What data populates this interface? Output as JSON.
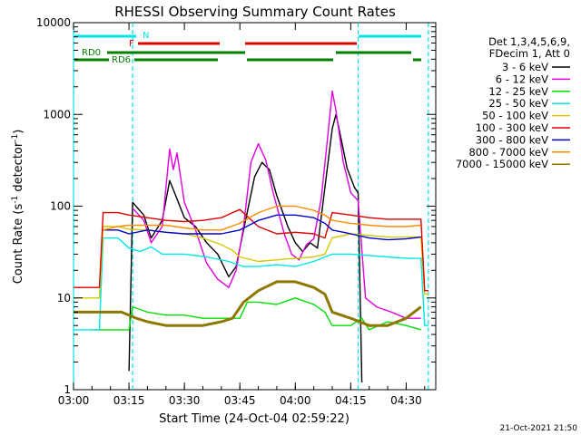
{
  "chart_data": {
    "type": "line",
    "title": "RHESSI Observing Summary Count Rates",
    "xlabel": "Start Time (24-Oct-04 02:59:22)",
    "ylabel_main": "Count Rate (s",
    "ylabel_sup": "-1",
    "ylabel_mid": " detector",
    "ylabel_end": ")",
    "y_scale": "log",
    "ylim": [
      1,
      10000
    ],
    "xlim": [
      "03:00",
      "04:38"
    ],
    "x_ticks": [
      "03:00",
      "03:15",
      "03:30",
      "03:45",
      "04:00",
      "04:15",
      "04:30"
    ],
    "y_ticks": [
      "1",
      "10",
      "100",
      "1000",
      "10000"
    ],
    "legend_header": [
      "Det 1,3,4,5,6,9,",
      "FDecim 1, Att 0"
    ],
    "legend_placement": "right",
    "footer_date": "21-Oct-2021 21:50",
    "flags": {
      "N_label": "N",
      "F_label": "F",
      "RD0_label": "RD0",
      "RD6_label": "RD6",
      "N_color": "#00e5e5",
      "F_color": "#dd0000",
      "RD_color": "#007f00"
    },
    "night_boundaries": [
      "03:00",
      "03:16",
      "04:17",
      "04:36"
    ],
    "series": [
      {
        "name": "3 - 6 keV",
        "color": "#000000",
        "points": [
          [
            "03:10",
            null
          ],
          [
            "03:15",
            1.6
          ],
          [
            "03:16",
            110
          ],
          [
            "03:19",
            80
          ],
          [
            "03:21",
            45
          ],
          [
            "03:24",
            70
          ],
          [
            "03:26",
            190
          ],
          [
            "03:28",
            120
          ],
          [
            "03:30",
            75
          ],
          [
            "03:33",
            60
          ],
          [
            "03:36",
            40
          ],
          [
            "03:39",
            30
          ],
          [
            "03:42",
            17
          ],
          [
            "03:44",
            22
          ],
          [
            "03:46",
            55
          ],
          [
            "03:49",
            210
          ],
          [
            "03:51",
            300
          ],
          [
            "03:53",
            250
          ],
          [
            "03:55",
            130
          ],
          [
            "03:58",
            60
          ],
          [
            "04:00",
            40
          ],
          [
            "04:02",
            32
          ],
          [
            "04:04",
            40
          ],
          [
            "04:06",
            35
          ],
          [
            "04:08",
            160
          ],
          [
            "04:10",
            700
          ],
          [
            "04:11",
            1000
          ],
          [
            "04:12",
            650
          ],
          [
            "04:14",
            260
          ],
          [
            "04:16",
            160
          ],
          [
            "04:17",
            140
          ],
          [
            "04:18",
            1.2
          ]
        ]
      },
      {
        "name": "6 - 12 keV",
        "color": "#e000e0",
        "points": [
          [
            "03:15",
            null
          ],
          [
            "03:16",
            95
          ],
          [
            "03:19",
            70
          ],
          [
            "03:21",
            40
          ],
          [
            "03:24",
            60
          ],
          [
            "03:26",
            420
          ],
          [
            "03:27",
            250
          ],
          [
            "03:28",
            380
          ],
          [
            "03:30",
            110
          ],
          [
            "03:33",
            55
          ],
          [
            "03:36",
            24
          ],
          [
            "03:39",
            16
          ],
          [
            "03:42",
            13
          ],
          [
            "03:44",
            20
          ],
          [
            "03:46",
            60
          ],
          [
            "03:48",
            300
          ],
          [
            "03:50",
            480
          ],
          [
            "03:52",
            320
          ],
          [
            "03:54",
            140
          ],
          [
            "03:57",
            50
          ],
          [
            "03:59",
            30
          ],
          [
            "04:01",
            26
          ],
          [
            "04:03",
            38
          ],
          [
            "04:05",
            44
          ],
          [
            "04:07",
            120
          ],
          [
            "04:09",
            700
          ],
          [
            "04:10",
            1800
          ],
          [
            "04:11",
            1100
          ],
          [
            "04:13",
            300
          ],
          [
            "04:15",
            140
          ],
          [
            "04:17",
            115
          ],
          [
            "04:19",
            10
          ],
          [
            "04:22",
            8
          ],
          [
            "04:26",
            7
          ],
          [
            "04:30",
            6
          ],
          [
            "04:34",
            6
          ]
        ]
      },
      {
        "name": "12 - 25 keV",
        "color": "#00e000",
        "points": [
          [
            "03:00",
            null
          ],
          [
            "03:05",
            4.5
          ],
          [
            "03:15",
            4.5
          ],
          [
            "03:16",
            8
          ],
          [
            "03:20",
            7
          ],
          [
            "03:25",
            6.5
          ],
          [
            "03:30",
            6.5
          ],
          [
            "03:35",
            6
          ],
          [
            "03:40",
            6
          ],
          [
            "03:45",
            6
          ],
          [
            "03:47",
            9
          ],
          [
            "03:50",
            9
          ],
          [
            "03:55",
            8.5
          ],
          [
            "04:00",
            10
          ],
          [
            "04:05",
            8.5
          ],
          [
            "04:08",
            7
          ],
          [
            "04:10",
            5
          ],
          [
            "04:15",
            5
          ],
          [
            "04:18",
            6
          ],
          [
            "04:20",
            4.5
          ],
          [
            "04:25",
            5.5
          ],
          [
            "04:30",
            5
          ],
          [
            "04:34",
            4.5
          ]
        ]
      },
      {
        "name": "25 - 50 keV",
        "color": "#00e5e5",
        "points": [
          [
            "03:00",
            4.5
          ],
          [
            "03:07",
            4.5
          ],
          [
            "03:08",
            45
          ],
          [
            "03:12",
            45
          ],
          [
            "03:15",
            35
          ],
          [
            "03:18",
            32
          ],
          [
            "03:21",
            36
          ],
          [
            "03:24",
            30
          ],
          [
            "03:30",
            30
          ],
          [
            "03:36",
            28
          ],
          [
            "03:42",
            25
          ],
          [
            "03:46",
            22
          ],
          [
            "03:50",
            22
          ],
          [
            "03:55",
            23
          ],
          [
            "04:00",
            22
          ],
          [
            "04:05",
            25
          ],
          [
            "04:10",
            30
          ],
          [
            "04:15",
            30
          ],
          [
            "04:20",
            29
          ],
          [
            "04:25",
            28
          ],
          [
            "04:30",
            27
          ],
          [
            "04:34",
            27
          ],
          [
            "04:35",
            5
          ],
          [
            "04:36",
            5
          ]
        ]
      },
      {
        "name": "50 - 100 keV",
        "color": "#d4c800",
        "points": [
          [
            "03:00",
            10
          ],
          [
            "03:07",
            10
          ],
          [
            "03:08",
            60
          ],
          [
            "03:12",
            60
          ],
          [
            "03:15",
            56
          ],
          [
            "03:20",
            55
          ],
          [
            "03:25",
            52
          ],
          [
            "03:30",
            50
          ],
          [
            "03:35",
            45
          ],
          [
            "03:40",
            38
          ],
          [
            "03:43",
            33
          ],
          [
            "03:45",
            28
          ],
          [
            "03:50",
            25
          ],
          [
            "03:55",
            26
          ],
          [
            "04:00",
            27
          ],
          [
            "04:05",
            28
          ],
          [
            "04:08",
            30
          ],
          [
            "04:10",
            45
          ],
          [
            "04:15",
            50
          ],
          [
            "04:20",
            48
          ],
          [
            "04:25",
            46
          ],
          [
            "04:30",
            46
          ],
          [
            "04:34",
            46
          ],
          [
            "04:35",
            11
          ],
          [
            "04:36",
            11
          ]
        ]
      },
      {
        "name": "100 - 300 keV",
        "color": "#dd0000",
        "points": [
          [
            "03:00",
            13
          ],
          [
            "03:07",
            13
          ],
          [
            "03:08",
            85
          ],
          [
            "03:12",
            85
          ],
          [
            "03:15",
            80
          ],
          [
            "03:20",
            75
          ],
          [
            "03:25",
            70
          ],
          [
            "03:30",
            68
          ],
          [
            "03:35",
            70
          ],
          [
            "03:40",
            75
          ],
          [
            "03:43",
            85
          ],
          [
            "03:45",
            92
          ],
          [
            "03:50",
            60
          ],
          [
            "03:55",
            50
          ],
          [
            "04:00",
            52
          ],
          [
            "04:05",
            50
          ],
          [
            "04:08",
            45
          ],
          [
            "04:10",
            85
          ],
          [
            "04:15",
            80
          ],
          [
            "04:20",
            75
          ],
          [
            "04:25",
            72
          ],
          [
            "04:30",
            72
          ],
          [
            "04:34",
            72
          ],
          [
            "04:35",
            12
          ],
          [
            "04:36",
            12
          ]
        ]
      },
      {
        "name": "300 - 800 keV",
        "color": "#0000cc",
        "points": [
          [
            "03:00",
            null
          ],
          [
            "03:07",
            null
          ],
          [
            "03:08",
            55
          ],
          [
            "03:12",
            55
          ],
          [
            "03:15",
            50
          ],
          [
            "03:20",
            55
          ],
          [
            "03:25",
            52
          ],
          [
            "03:30",
            50
          ],
          [
            "03:35",
            50
          ],
          [
            "03:40",
            50
          ],
          [
            "03:45",
            55
          ],
          [
            "03:50",
            70
          ],
          [
            "03:55",
            80
          ],
          [
            "04:00",
            80
          ],
          [
            "04:05",
            75
          ],
          [
            "04:08",
            65
          ],
          [
            "04:10",
            55
          ],
          [
            "04:15",
            50
          ],
          [
            "04:20",
            45
          ],
          [
            "04:25",
            43
          ],
          [
            "04:30",
            44
          ],
          [
            "04:34",
            46
          ]
        ]
      },
      {
        "name": "800 - 7000 keV",
        "color": "#ff8c00",
        "points": [
          [
            "03:00",
            null
          ],
          [
            "03:07",
            null
          ],
          [
            "03:08",
            55
          ],
          [
            "03:12",
            60
          ],
          [
            "03:15",
            62
          ],
          [
            "03:20",
            62
          ],
          [
            "03:25",
            62
          ],
          [
            "03:30",
            58
          ],
          [
            "03:35",
            55
          ],
          [
            "03:40",
            55
          ],
          [
            "03:45",
            65
          ],
          [
            "03:50",
            85
          ],
          [
            "03:55",
            100
          ],
          [
            "04:00",
            100
          ],
          [
            "04:05",
            90
          ],
          [
            "04:08",
            80
          ],
          [
            "04:10",
            70
          ],
          [
            "04:15",
            65
          ],
          [
            "04:20",
            62
          ],
          [
            "04:25",
            60
          ],
          [
            "04:30",
            60
          ],
          [
            "04:34",
            62
          ]
        ]
      },
      {
        "name": "7000 - 15000 keV",
        "color": "#8c7800",
        "points": [
          [
            "03:00",
            7
          ],
          [
            "03:05",
            7
          ],
          [
            "03:10",
            7
          ],
          [
            "03:13",
            7
          ],
          [
            "03:17",
            6
          ],
          [
            "03:20",
            5.5
          ],
          [
            "03:25",
            5
          ],
          [
            "03:30",
            5
          ],
          [
            "03:35",
            5
          ],
          [
            "03:40",
            5.5
          ],
          [
            "03:43",
            6
          ],
          [
            "03:46",
            9
          ],
          [
            "03:50",
            12
          ],
          [
            "03:55",
            15
          ],
          [
            "04:00",
            15
          ],
          [
            "04:05",
            13
          ],
          [
            "04:08",
            11
          ],
          [
            "04:10",
            7
          ],
          [
            "04:15",
            6
          ],
          [
            "04:20",
            5
          ],
          [
            "04:25",
            5
          ],
          [
            "04:30",
            6
          ],
          [
            "04:34",
            8
          ]
        ]
      }
    ]
  }
}
